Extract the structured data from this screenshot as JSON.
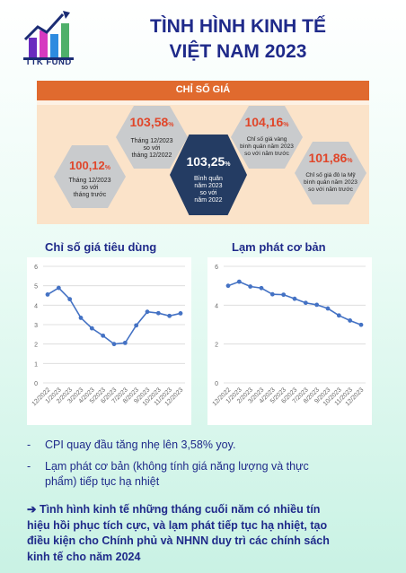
{
  "logo": {
    "text": "TTK FUND",
    "icon": "bar-chart-arrow-icon"
  },
  "title": {
    "line1": "TÌNH HÌNH KINH TẾ",
    "line2": "VIỆT NAM 2023"
  },
  "price_panel": {
    "header": "CHỈ SỐ GIÁ",
    "items": [
      {
        "value": "100,12",
        "unit": "%",
        "lines": [
          "Tháng 12/2023",
          "so với",
          "tháng trước"
        ]
      },
      {
        "value": "103,58",
        "unit": "%",
        "lines": [
          "Tháng 12/2023",
          "so với",
          "tháng 12/2022"
        ]
      },
      {
        "value": "103,25",
        "unit": "%",
        "lines": [
          "Bình quân",
          "năm 2023",
          "so với",
          "năm 2022"
        ]
      },
      {
        "value": "104,16",
        "unit": "%",
        "lines": [
          "Chỉ số giá vàng",
          "bình quân năm 2023",
          "so với năm trước"
        ]
      },
      {
        "value": "101,86",
        "unit": "%",
        "lines": [
          "Chỉ số giá đô la Mỹ",
          "bình quân năm 2023",
          "so với năm trước"
        ]
      }
    ]
  },
  "colors": {
    "title": "#1f2a8a",
    "line": "#4472c4",
    "accent": "#e06a2e",
    "hex_dark": "#243c63"
  },
  "chart_data": [
    {
      "type": "line",
      "title": "Chỉ số giá tiêu dùng",
      "categories": [
        "12/2022",
        "1/2023",
        "2/2023",
        "3/2023",
        "4/2023",
        "5/2023",
        "6/2023",
        "7/2023",
        "8/2023",
        "9/2023",
        "10/2023",
        "11/2023",
        "12/2023"
      ],
      "values": [
        4.55,
        4.89,
        4.31,
        3.35,
        2.81,
        2.43,
        2.0,
        2.06,
        2.96,
        3.66,
        3.59,
        3.45,
        3.58
      ],
      "ylim": [
        0,
        6
      ],
      "yticks": [
        0,
        1,
        2,
        3,
        4,
        5,
        6
      ],
      "grid": true,
      "xlabel": "",
      "ylabel": ""
    },
    {
      "type": "line",
      "title": "Lạm phát cơ bản",
      "categories": [
        "12/2022",
        "1/2023",
        "2/2023",
        "3/2023",
        "4/2023",
        "5/2023",
        "6/2023",
        "7/2023",
        "8/2023",
        "9/2023",
        "10/2023",
        "11/2023",
        "12/2023"
      ],
      "values": [
        5.0,
        5.21,
        4.96,
        4.88,
        4.56,
        4.54,
        4.33,
        4.12,
        4.02,
        3.83,
        3.47,
        3.21,
        2.99
      ],
      "ylim": [
        0,
        6
      ],
      "yticks": [
        0,
        2,
        4,
        6
      ],
      "grid": true,
      "xlabel": "",
      "ylabel": ""
    }
  ],
  "bullets": [
    {
      "dash": "-",
      "lines": [
        "CPI quay đầu tăng nhẹ lên 3,58%  yoy."
      ]
    },
    {
      "dash": "-",
      "lines": [
        "Lạm phát cơ bản (không tính giá năng lượng và thực",
        "phẩm) tiếp tục hạ nhiệt"
      ]
    }
  ],
  "conclusion": [
    "➔ Tình hình kinh tế những tháng cuối năm có nhiều tín",
    "hiệu hồi phục tích cực, và lạm phát tiếp tục hạ nhiệt, tạo",
    "điều kiện cho Chính phủ và NHNN duy trì các chính sách",
    "kinh tế cho năm 2024"
  ]
}
